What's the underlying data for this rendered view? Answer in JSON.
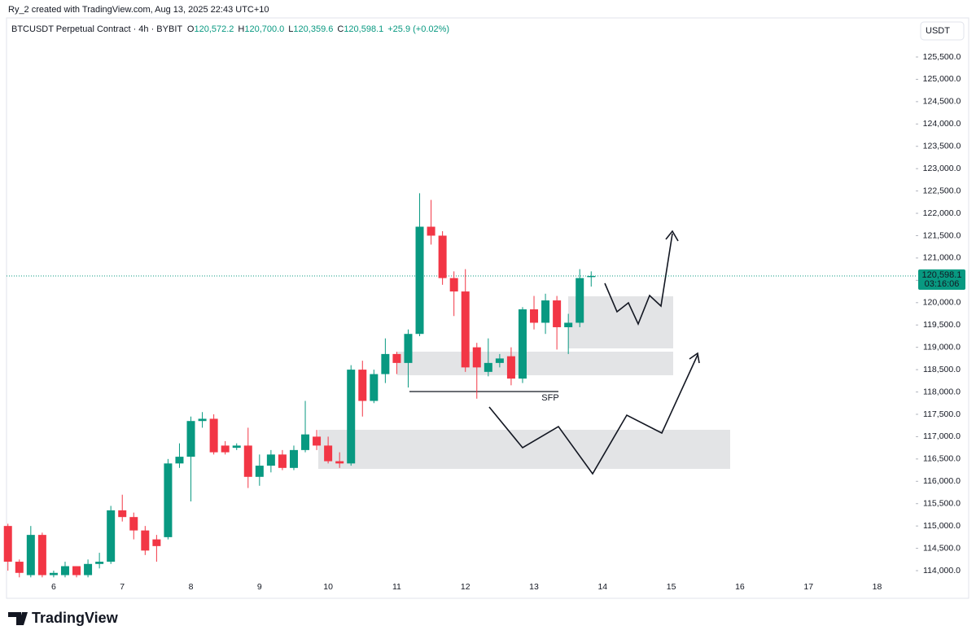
{
  "credit": "Ry_2 created with TradingView.com, Aug 13, 2025 22:43 UTC+10",
  "brand": "TradingView",
  "chart_data": {
    "type": "candlestick",
    "title": "BTCUSDT Perpetual Contract · 4h · BYBIT",
    "ohlc_legend": [
      {
        "key": "O",
        "text": "120,572.2"
      },
      {
        "key": "H",
        "text": "120,700.0"
      },
      {
        "key": "L",
        "text": "120,359.6"
      },
      {
        "key": "C",
        "text": "120,598.1"
      }
    ],
    "change": "+25.9 (+0.02%)",
    "currency": "USDT",
    "last_price": 120598.1,
    "last_price_label": "120,598.1",
    "countdown": "03:16:06",
    "annotations": [
      "SFP"
    ],
    "up_color": "#089981",
    "down_color": "#f23645",
    "grid": false,
    "categories": [
      null,
      null,
      null,
      null,
      "6",
      null,
      null,
      null,
      null,
      null,
      "7",
      null,
      null,
      null,
      null,
      null,
      "8",
      null,
      null,
      null,
      null,
      null,
      "9",
      null,
      null,
      null,
      null,
      null,
      "10",
      null,
      null,
      null,
      null,
      null,
      "11",
      null,
      null,
      null,
      null,
      null,
      "12",
      null,
      null,
      null,
      null,
      null,
      "13",
      null,
      null,
      null,
      null,
      null,
      "14",
      null,
      null,
      null,
      null,
      null,
      "15",
      null,
      null,
      null,
      null,
      null,
      "16",
      null,
      null,
      null,
      null,
      null,
      "17",
      null,
      null,
      null,
      null,
      null,
      "18",
      null,
      null,
      null
    ],
    "open": [
      115000,
      114200,
      113900,
      114800,
      113900,
      113900,
      114100,
      113900,
      114150,
      114200,
      115350,
      115200,
      114900,
      114700,
      114750,
      116400,
      116550,
      117350,
      117400,
      116800,
      116750,
      116800,
      116100,
      116350,
      116600,
      116300,
      116700,
      117000,
      116800,
      116450,
      116400,
      118500,
      117800,
      118400,
      118850,
      118650,
      119300,
      121700,
      121500,
      120550,
      120250,
      119000,
      118450,
      118650,
      118800,
      118300,
      119850,
      119550,
      120050,
      119450,
      119550,
      120572.2,
      null,
      null,
      null,
      null,
      null,
      null,
      null,
      null,
      null,
      null,
      null,
      null,
      null,
      null,
      null,
      null,
      null,
      null,
      null,
      null,
      null,
      null,
      null,
      null,
      null,
      null,
      null,
      null
    ],
    "high": [
      115050,
      114250,
      115000,
      114850,
      114000,
      114200,
      114100,
      114250,
      114400,
      115450,
      115700,
      115300,
      115000,
      114800,
      116500,
      116850,
      117450,
      117550,
      117500,
      116900,
      116850,
      117200,
      116600,
      116700,
      116700,
      116800,
      117800,
      117150,
      117000,
      116650,
      118600,
      118700,
      118500,
      119200,
      118900,
      119400,
      122450,
      122300,
      121600,
      120700,
      120750,
      119100,
      119200,
      118850,
      119000,
      119900,
      120150,
      120200,
      120150,
      119750,
      120750,
      120700,
      null,
      null,
      null,
      null,
      null,
      null,
      null,
      null,
      null,
      null,
      null,
      null,
      null,
      null,
      null,
      null,
      null,
      null,
      null,
      null,
      null,
      null,
      null,
      null,
      null,
      null,
      null,
      null
    ],
    "low": [
      114000,
      113850,
      113850,
      113850,
      113850,
      113850,
      113850,
      113850,
      114050,
      114150,
      115100,
      114700,
      114350,
      114200,
      114700,
      116300,
      115550,
      117200,
      116600,
      116600,
      116700,
      115850,
      115900,
      116200,
      116250,
      116250,
      116650,
      116700,
      116400,
      116300,
      116350,
      117450,
      117750,
      118200,
      118400,
      118100,
      119250,
      121300,
      120400,
      119700,
      118450,
      117850,
      118350,
      118550,
      118150,
      118200,
      119400,
      119300,
      118950,
      118850,
      119450,
      120359.6,
      null,
      null,
      null,
      null,
      null,
      null,
      null,
      null,
      null,
      null,
      null,
      null,
      null,
      null,
      null,
      null,
      null,
      null,
      null,
      null,
      null,
      null,
      null,
      null,
      null,
      null,
      null,
      null
    ],
    "close": [
      114200,
      113950,
      114800,
      113900,
      113950,
      114100,
      113900,
      114150,
      114200,
      115350,
      115200,
      114900,
      114450,
      114550,
      116400,
      116550,
      117350,
      117400,
      116650,
      116650,
      116800,
      116100,
      116350,
      116600,
      116300,
      116700,
      117050,
      116800,
      116450,
      116400,
      118500,
      117800,
      118400,
      118850,
      118650,
      119300,
      121700,
      121500,
      120550,
      120250,
      118550,
      118550,
      118650,
      118750,
      118300,
      119850,
      119550,
      120050,
      119450,
      119550,
      120550,
      120598.1,
      null,
      null,
      null,
      null,
      null,
      null,
      null,
      null,
      null,
      null,
      null,
      null,
      null,
      null,
      null,
      null,
      null,
      null,
      null,
      null,
      null,
      null,
      null,
      null,
      null,
      null,
      null,
      null
    ],
    "ylim": [
      113800,
      126320
    ],
    "yticks": [
      {
        "value": 114000,
        "label": "114,000.0"
      },
      {
        "value": 114500,
        "label": "114,500.0"
      },
      {
        "value": 115000,
        "label": "115,000.0"
      },
      {
        "value": 115500,
        "label": "115,500.0"
      },
      {
        "value": 116000,
        "label": "116,000.0"
      },
      {
        "value": 116500,
        "label": "116,500.0"
      },
      {
        "value": 117000,
        "label": "117,000.0"
      },
      {
        "value": 117500,
        "label": "117,500.0"
      },
      {
        "value": 118000,
        "label": "118,000.0"
      },
      {
        "value": 118500,
        "label": "118,500.0"
      },
      {
        "value": 119000,
        "label": "119,000.0"
      },
      {
        "value": 119500,
        "label": "119,500.0"
      },
      {
        "value": 120000,
        "label": "120,000.0"
      },
      {
        "value": 120500,
        "label": "120,500.0"
      },
      {
        "value": 121000,
        "label": "121,000.0"
      },
      {
        "value": 121500,
        "label": "121,500.0"
      },
      {
        "value": 122000,
        "label": "122,000.0"
      },
      {
        "value": 122500,
        "label": "122,500.0"
      },
      {
        "value": 123000,
        "label": "123,000.0"
      },
      {
        "value": 123500,
        "label": "123,500.0"
      },
      {
        "value": 124000,
        "label": "124,000.0"
      },
      {
        "value": 124500,
        "label": "124,500.0"
      },
      {
        "value": 125000,
        "label": "125,000.0"
      },
      {
        "value": 125500,
        "label": "125,500.0"
      }
    ]
  }
}
